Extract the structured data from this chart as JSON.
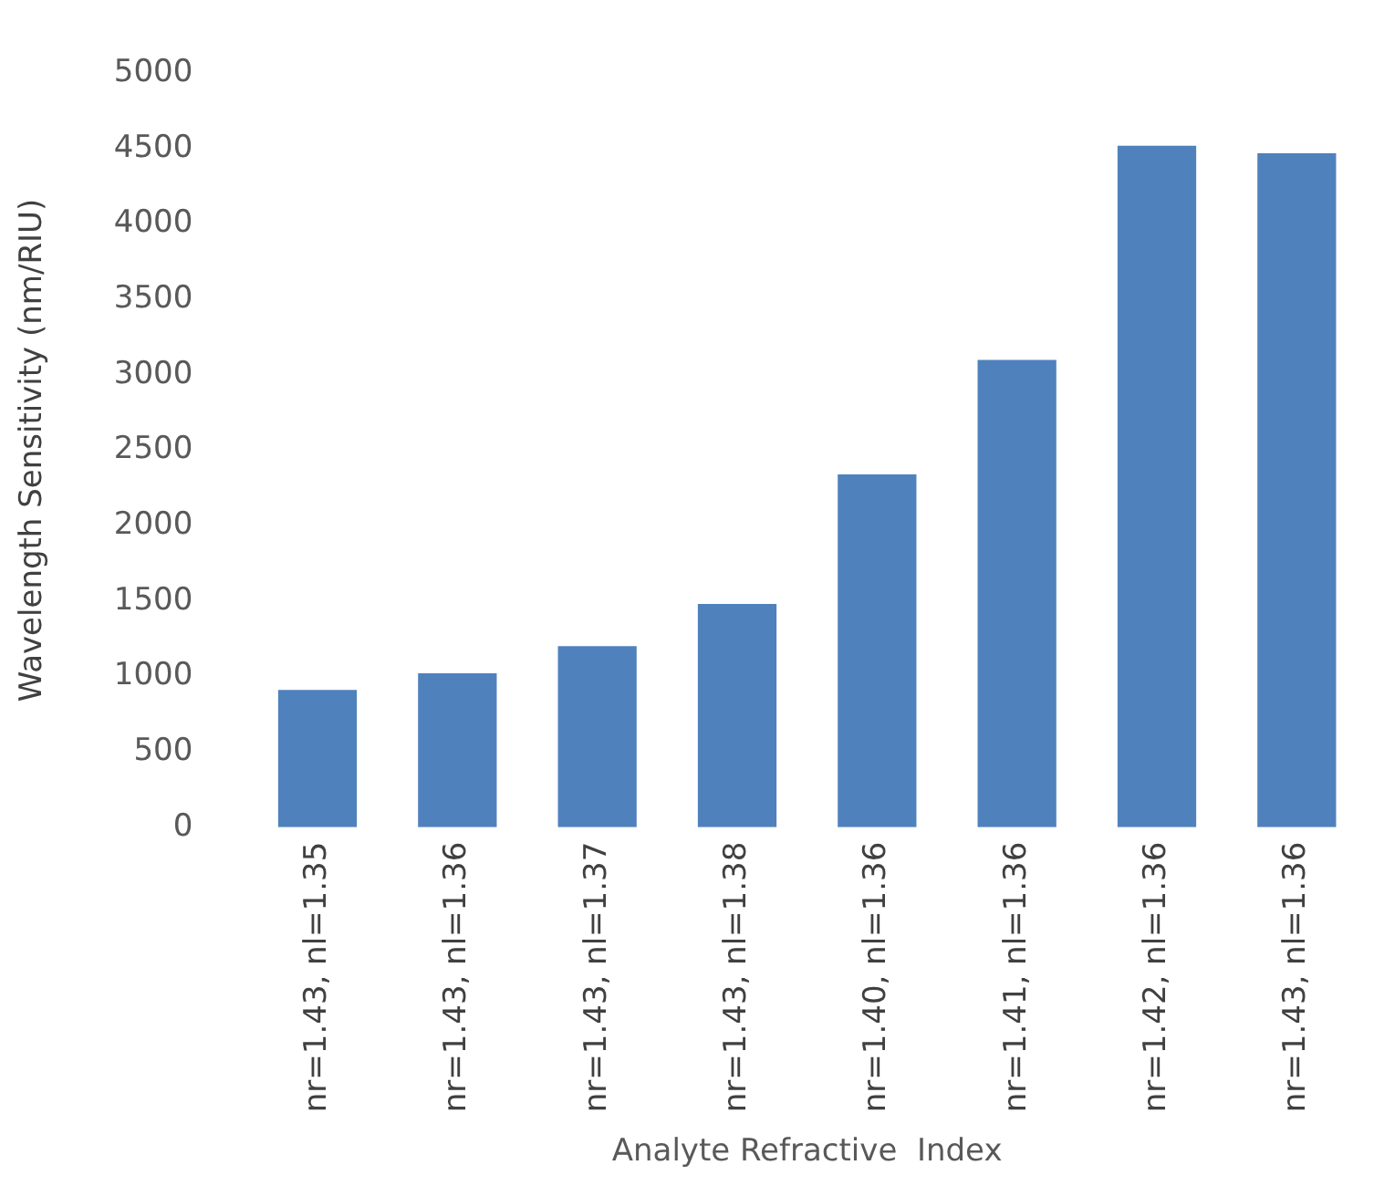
{
  "chart_data": {
    "type": "bar",
    "xlabel": "Analyte Refractive  Index",
    "ylabel": "Wavelength Sensitivity (nm/RIU)",
    "categories": [
      "nr=1.43, nl=1.35",
      "nr=1.43, nl=1.36",
      "nr=1.43, nl=1.37",
      "nr=1.43, nl=1.38",
      "nr=1.40, nl=1.36",
      "nr=1.41, nl=1.36",
      "nr=1.42, nl=1.36",
      "nr=1.43, nl=1.36"
    ],
    "values": [
      910,
      1020,
      1200,
      1480,
      2340,
      3100,
      4520,
      4470
    ],
    "color": "#4f81bd",
    "ylim": [
      0,
      5000
    ],
    "yticks": [
      0,
      500,
      1000,
      1500,
      2000,
      2500,
      3000,
      3500,
      4000,
      4500,
      5000
    ],
    "grid": false
  }
}
